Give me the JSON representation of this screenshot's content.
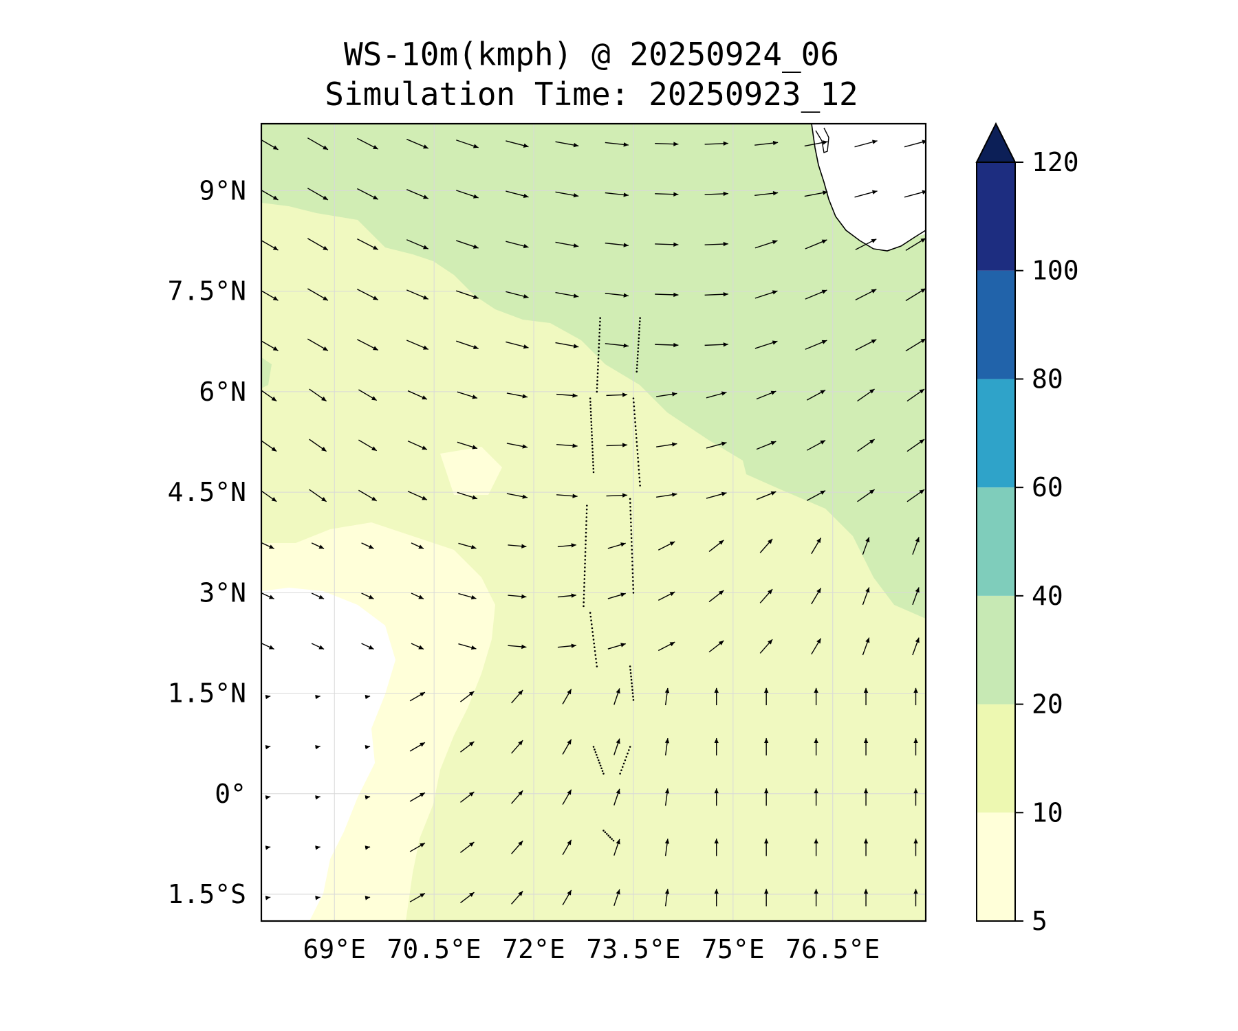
{
  "title": {
    "line1": "WS-10m(kmph) @ 20250924_06",
    "line2": "Simulation Time: 20250923_12"
  },
  "map": {
    "lon_range": [
      67.9,
      77.9
    ],
    "lat_range": [
      -1.9,
      10.0
    ],
    "x_ticks": [
      {
        "value": 69,
        "label": "69°E"
      },
      {
        "value": 70.5,
        "label": "70.5°E"
      },
      {
        "value": 72,
        "label": "72°E"
      },
      {
        "value": 73.5,
        "label": "73.5°E"
      },
      {
        "value": 75,
        "label": "75°E"
      },
      {
        "value": 76.5,
        "label": "76.5°E"
      }
    ],
    "y_ticks": [
      {
        "value": 9,
        "label": "9°N"
      },
      {
        "value": 7.5,
        "label": "7.5°N"
      },
      {
        "value": 6,
        "label": "6°N"
      },
      {
        "value": 4.5,
        "label": "4.5°N"
      },
      {
        "value": 3,
        "label": "3°N"
      },
      {
        "value": 1.5,
        "label": "1.5°N"
      },
      {
        "value": 0,
        "label": "0°"
      },
      {
        "value": -1.5,
        "label": "1.5°S"
      }
    ],
    "fill_colors": {
      "below_5": "#ffffff",
      "5_10": "#ffffd9",
      "10_20": "#f0f9c0",
      "20_40": "#d1edb4",
      "coast": "#000000",
      "arrow": "#000000"
    }
  },
  "colorbar": {
    "levels": [
      {
        "label": "5",
        "color": "#ffffd9"
      },
      {
        "label": "10",
        "color": "#edf8b1"
      },
      {
        "label": "20",
        "color": "#c7e9b4"
      },
      {
        "label": "40",
        "color": "#7fcdbb"
      },
      {
        "label": "60",
        "color": "#2fa3c9"
      },
      {
        "label": "80",
        "color": "#2163aa"
      },
      {
        "label": "100",
        "color": "#1d2d80"
      },
      {
        "label": "120",
        "color": "#0c1f57"
      }
    ],
    "extend": "max"
  }
}
